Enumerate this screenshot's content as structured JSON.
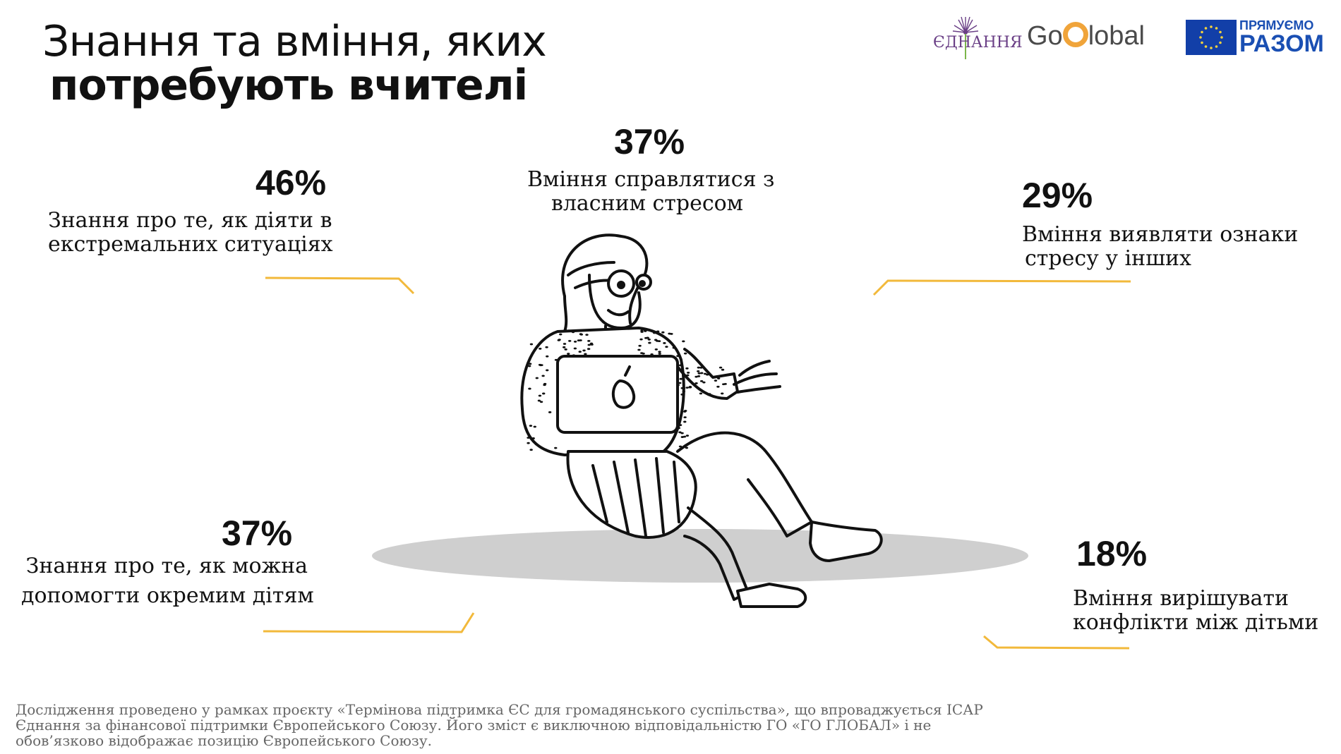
{
  "title": {
    "line1": "Знання та вміння, яких",
    "line2": "потребують вчителі"
  },
  "logos": {
    "ednannia": "ЄДНАННЯ",
    "goglobal_before": "Go",
    "goglobal_after": "lobal",
    "eu_line1": "ПРЯМУЄМО",
    "eu_line2": "РАЗОМ"
  },
  "stats": [
    {
      "id": "s1",
      "percent": "46%",
      "label_lines": [
        "Знання про те, як діяти в",
        "екстремальних ситуаціях"
      ]
    },
    {
      "id": "s2",
      "percent": "37%",
      "label_lines": [
        "Вміння справлятися з",
        "власним стресом"
      ]
    },
    {
      "id": "s3",
      "percent": "29%",
      "label_lines": [
        "Вміння виявляти ознаки",
        "стресу у інших"
      ]
    },
    {
      "id": "s4",
      "percent": "37%",
      "label_lines": [
        "Знання про те, як можна",
        "допомогти окремим дітям"
      ]
    },
    {
      "id": "s5",
      "percent": "18%",
      "label_lines": [
        "Вміння вирішувати",
        "конфлікти між дітьми"
      ]
    }
  ],
  "footer": {
    "line1": "Дослідження проведено у рамках проєкту «Термінова підтримка ЄС для громадянського суспільства», що впроваджується ІСАР",
    "line2": "Єднання за фінансової підтримки Європейського Союзу. Його зміст є виключною відповідальністю ГО «ГО ГЛОБАЛ» і не",
    "line3": "обов’язково відображає позицію Європейського Союзу."
  },
  "colors": {
    "accent_line": "#f2b93b",
    "shadow": "#cfcfcf",
    "text": "#111111",
    "footer": "#666666",
    "eu_blue": "#123fa8"
  },
  "illustration": "woman-with-laptop-illustration"
}
